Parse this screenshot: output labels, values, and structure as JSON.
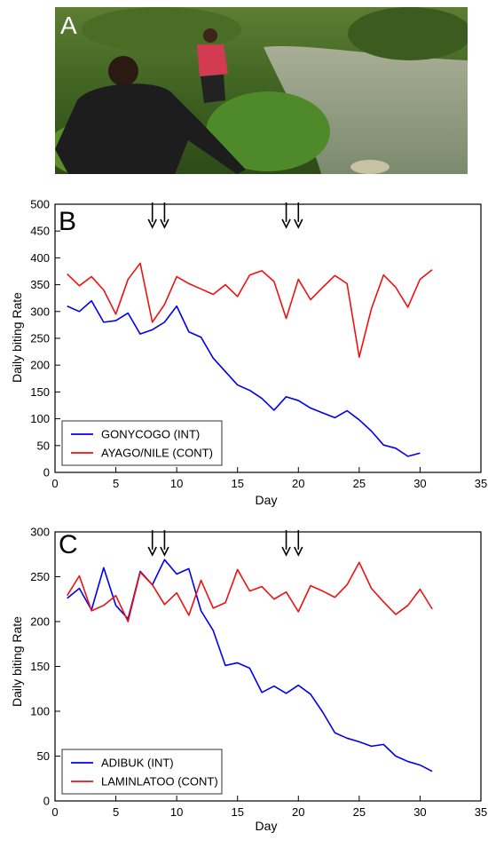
{
  "photo": {
    "panel_letter": "A"
  },
  "chart_data": [
    {
      "type": "line",
      "panel_letter": "B",
      "xlabel": "Day",
      "ylabel": "Daily biting Rate",
      "xlim": [
        0,
        35
      ],
      "ylim": [
        0,
        500
      ],
      "xticks": [
        0,
        5,
        10,
        15,
        20,
        25,
        30,
        35
      ],
      "yticks": [
        0,
        50,
        100,
        150,
        200,
        250,
        300,
        350,
        400,
        450,
        500
      ],
      "legend_position": "bottom-left",
      "arrow_days": [
        8,
        9,
        19,
        20
      ],
      "series": [
        {
          "name": "GONYCOGO (INT)",
          "color": "#0000ee",
          "x": [
            1,
            2,
            3,
            4,
            5,
            6,
            7,
            8,
            9,
            10,
            11,
            12,
            13,
            14,
            15,
            16,
            17,
            18,
            19,
            20,
            21,
            22,
            23,
            24,
            25,
            26,
            27,
            28,
            29,
            30
          ],
          "y": [
            310,
            300,
            320,
            280,
            283,
            297,
            258,
            266,
            280,
            310,
            262,
            252,
            213,
            188,
            163,
            153,
            138,
            116,
            141,
            134,
            120,
            111,
            102,
            115,
            98,
            77,
            51,
            45,
            30,
            36
          ]
        },
        {
          "name": "AYAGO/NILE (CONT)",
          "color": "#ee1111",
          "x": [
            1,
            2,
            3,
            4,
            5,
            6,
            7,
            8,
            9,
            10,
            11,
            12,
            13,
            14,
            15,
            16,
            17,
            18,
            19,
            20,
            21,
            22,
            23,
            24,
            25,
            26,
            27,
            28,
            29,
            30,
            31
          ],
          "y": [
            370,
            348,
            365,
            340,
            295,
            360,
            390,
            280,
            313,
            365,
            352,
            342,
            332,
            350,
            328,
            368,
            376,
            356,
            287,
            360,
            322,
            345,
            367,
            352,
            215,
            305,
            368,
            345,
            308,
            360,
            378
          ]
        }
      ]
    },
    {
      "type": "line",
      "panel_letter": "C",
      "xlabel": "Day",
      "ylabel": "Daily biting Rate",
      "xlim": [
        0,
        35
      ],
      "ylim": [
        0,
        300
      ],
      "xticks": [
        0,
        5,
        10,
        15,
        20,
        25,
        30,
        35
      ],
      "yticks": [
        0,
        50,
        100,
        150,
        200,
        250,
        300
      ],
      "legend_position": "bottom-left",
      "arrow_days": [
        8,
        9,
        19,
        20
      ],
      "series": [
        {
          "name": "ADIBUK (INT)",
          "color": "#0000ee",
          "x": [
            1,
            2,
            3,
            4,
            5,
            6,
            7,
            8,
            9,
            10,
            11,
            12,
            13,
            14,
            15,
            16,
            17,
            18,
            19,
            20,
            21,
            22,
            23,
            24,
            25,
            26,
            27,
            28,
            29,
            30,
            31
          ],
          "y": [
            226,
            237,
            213,
            260,
            218,
            203,
            256,
            241,
            269,
            253,
            259,
            212,
            190,
            151,
            154,
            148,
            121,
            128,
            120,
            129,
            119,
            99,
            76,
            70,
            66,
            61,
            63,
            50,
            44,
            40,
            33
          ]
        },
        {
          "name": "LAMINLATOO (CONT)",
          "color": "#ee1111",
          "x": [
            1,
            2,
            3,
            4,
            5,
            6,
            7,
            8,
            9,
            10,
            11,
            12,
            13,
            14,
            15,
            16,
            17,
            18,
            19,
            20,
            21,
            22,
            23,
            24,
            25,
            26,
            27,
            28,
            29,
            30,
            31
          ],
          "y": [
            229,
            251,
            212,
            218,
            229,
            200,
            255,
            241,
            219,
            232,
            207,
            246,
            215,
            221,
            258,
            234,
            239,
            225,
            233,
            211,
            240,
            234,
            227,
            241,
            266,
            237,
            222,
            208,
            218,
            236,
            214
          ]
        }
      ]
    }
  ]
}
